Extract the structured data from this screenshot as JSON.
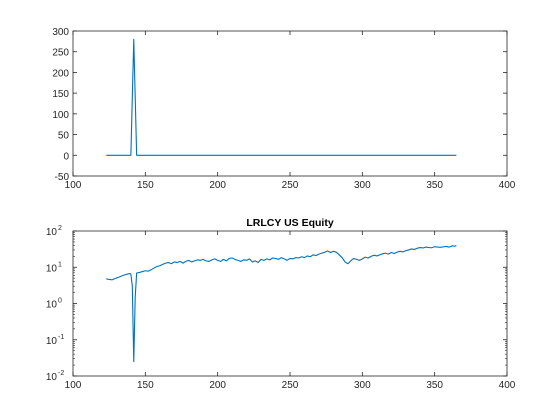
{
  "chart_data": [
    {
      "type": "line",
      "title": "",
      "xlabel": "",
      "ylabel": "",
      "xlim": [
        100,
        400
      ],
      "ylim": [
        -50,
        300
      ],
      "y_scale": "linear",
      "x_ticks": [
        "100",
        "150",
        "200",
        "250",
        "300",
        "350",
        "400"
      ],
      "y_ticks": [
        "-50",
        "0",
        "50",
        "100",
        "150",
        "200",
        "250",
        "300"
      ],
      "grid": false,
      "line_color": "#0072bd",
      "series": [
        {
          "x": [
            123,
            140,
            141,
            142,
            143,
            144,
            365
          ],
          "y": [
            0,
            0,
            140,
            280,
            140,
            0,
            0
          ]
        }
      ]
    },
    {
      "type": "line",
      "title": "LRLCY US Equity",
      "xlabel": "",
      "ylabel": "",
      "xlim": [
        100,
        400
      ],
      "ylim": [
        0.01,
        100
      ],
      "y_scale": "log",
      "x_ticks": [
        "100",
        "150",
        "200",
        "250",
        "300",
        "350",
        "400"
      ],
      "y_ticks": [
        {
          "base": "10",
          "exp": "-2"
        },
        {
          "base": "10",
          "exp": "-1"
        },
        {
          "base": "10",
          "exp": "0"
        },
        {
          "base": "10",
          "exp": "1"
        },
        {
          "base": "10",
          "exp": "2"
        }
      ],
      "grid": false,
      "line_color": "#0072bd",
      "series": [
        {
          "x": [
            123,
            125,
            127,
            129,
            131,
            133,
            135,
            137,
            139,
            140,
            141,
            142,
            143,
            144,
            146,
            148,
            150,
            152,
            154,
            156,
            158,
            160,
            162,
            164,
            166,
            168,
            170,
            172,
            174,
            176,
            178,
            180,
            182,
            184,
            186,
            188,
            190,
            192,
            194,
            196,
            198,
            200,
            202,
            204,
            206,
            208,
            210,
            212,
            214,
            216,
            218,
            220,
            222,
            224,
            226,
            228,
            230,
            232,
            234,
            236,
            238,
            240,
            242,
            244,
            246,
            248,
            250,
            252,
            254,
            256,
            258,
            260,
            262,
            264,
            266,
            268,
            270,
            272,
            274,
            276,
            278,
            280,
            282,
            284,
            286,
            288,
            290,
            292,
            294,
            296,
            298,
            300,
            302,
            304,
            306,
            308,
            310,
            312,
            314,
            316,
            318,
            320,
            322,
            324,
            326,
            328,
            330,
            332,
            334,
            336,
            338,
            340,
            342,
            344,
            346,
            348,
            350,
            352,
            354,
            356,
            358,
            360,
            362,
            364,
            365
          ],
          "y": [
            4.8,
            4.6,
            4.5,
            4.9,
            5.2,
            5.6,
            6.0,
            6.4,
            6.7,
            6.5,
            3.0,
            0.025,
            1.5,
            6.9,
            7.2,
            7.6,
            8.0,
            7.8,
            8.5,
            9.5,
            10.5,
            11.0,
            12.0,
            13.0,
            13.5,
            12.5,
            14.0,
            13.5,
            14.5,
            13.0,
            14.5,
            15.5,
            14.0,
            15.0,
            16.0,
            15.5,
            16.5,
            15.0,
            14.5,
            16.0,
            17.0,
            15.5,
            14.5,
            16.5,
            15.0,
            17.5,
            18.0,
            16.5,
            15.5,
            14.5,
            16.0,
            15.5,
            17.0,
            14.0,
            15.0,
            13.5,
            16.5,
            15.5,
            17.0,
            16.0,
            18.0,
            17.5,
            16.5,
            18.5,
            17.0,
            15.5,
            17.5,
            17.0,
            18.5,
            18.0,
            19.5,
            18.5,
            20.5,
            19.5,
            22.0,
            21.0,
            23.0,
            24.5,
            26.0,
            28.0,
            25.5,
            27.5,
            26.0,
            22.0,
            18.5,
            14.0,
            12.5,
            15.0,
            17.5,
            16.5,
            15.5,
            17.0,
            19.0,
            18.0,
            20.0,
            21.5,
            20.5,
            22.0,
            23.5,
            24.5,
            23.0,
            25.5,
            24.0,
            26.0,
            27.5,
            26.5,
            28.5,
            30.0,
            32.0,
            31.0,
            33.5,
            35.0,
            34.0,
            36.0,
            35.0,
            34.5,
            37.0,
            36.0,
            35.5,
            36.5,
            37.5,
            36.0,
            39.0,
            38.0,
            40.0
          ]
        }
      ]
    }
  ]
}
